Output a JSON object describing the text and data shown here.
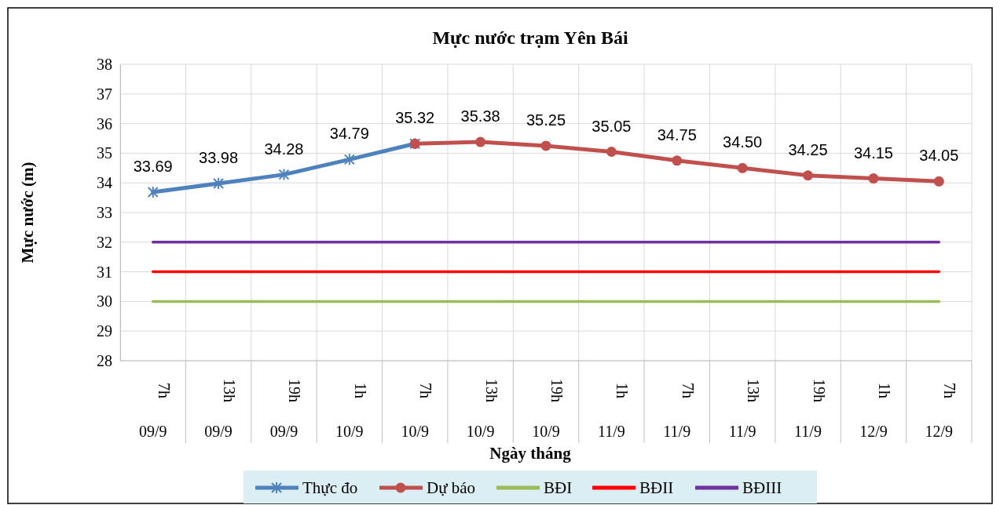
{
  "chart_data": {
    "type": "line",
    "title": "Mực nước trạm Yên Bái",
    "xlabel": "Ngày tháng",
    "ylabel": "Mực nước (m)",
    "categories": [
      "7h\n09/9",
      "13h\n09/9",
      "19h\n09/9",
      "1h\n10/9",
      "7h\n10/9",
      "13h\n10/9",
      "19h\n10/9",
      "1h\n11/9",
      "7h\n11/9",
      "13h\n11/9",
      "19h\n11/9",
      "1h\n12/9",
      "7h\n12/9"
    ],
    "ylim": [
      28,
      38
    ],
    "yticks": [
      28,
      29,
      30,
      31,
      32,
      33,
      34,
      35,
      36,
      37,
      38
    ],
    "grid": true,
    "legend": "bottom",
    "series": [
      {
        "name": "Thực đo",
        "color": "#4f81bd",
        "marker": "cross",
        "values": [
          33.69,
          33.98,
          34.28,
          34.79,
          35.32,
          null,
          null,
          null,
          null,
          null,
          null,
          null,
          null
        ],
        "value_labels": [
          "33.69",
          "33.98",
          "34.28",
          "34.79",
          "35.32",
          null,
          null,
          null,
          null,
          null,
          null,
          null,
          null
        ]
      },
      {
        "name": "Dự báo",
        "color": "#c0504d",
        "marker": "circle",
        "values": [
          null,
          null,
          null,
          null,
          35.32,
          35.38,
          35.25,
          35.05,
          34.75,
          34.5,
          34.25,
          34.15,
          34.05
        ],
        "value_labels": [
          null,
          null,
          null,
          null,
          null,
          "35.38",
          "35.25",
          "35.05",
          "34.75",
          "34.50",
          "34.25",
          "34.15",
          "34.05"
        ]
      },
      {
        "name": "BĐI",
        "color": "#9bbb59",
        "marker": "none",
        "values": [
          30,
          30,
          30,
          30,
          30,
          30,
          30,
          30,
          30,
          30,
          30,
          30,
          30
        ]
      },
      {
        "name": "BĐII",
        "color": "#ff0000",
        "marker": "none",
        "values": [
          31,
          31,
          31,
          31,
          31,
          31,
          31,
          31,
          31,
          31,
          31,
          31,
          31
        ]
      },
      {
        "name": "BĐIII",
        "color": "#7030a0",
        "marker": "none",
        "values": [
          32,
          32,
          32,
          32,
          32,
          32,
          32,
          32,
          32,
          32,
          32,
          32,
          32
        ]
      }
    ]
  }
}
